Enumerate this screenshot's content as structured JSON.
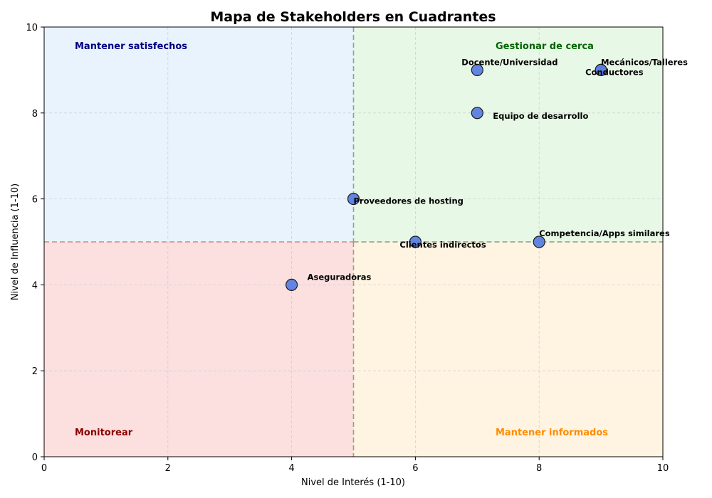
{
  "chart_data": {
    "type": "scatter",
    "title": "Mapa de Stakeholders en Cuadrantes",
    "xlabel": "Nivel de Interés (1-10)",
    "ylabel": "Nivel de Influencia (1-10)",
    "xlim": [
      0,
      10
    ],
    "ylim": [
      0,
      10
    ],
    "x_ticks": [
      "0",
      "2",
      "4",
      "6",
      "8",
      "10"
    ],
    "y_ticks": [
      "0",
      "2",
      "4",
      "6",
      "8",
      "10"
    ],
    "grid": true,
    "thresholds": {
      "x": 5,
      "y": 5
    },
    "quadrants": [
      {
        "key": "top-left",
        "label": "Mantener satisfechos",
        "fill": "#e8f3fe",
        "color": "#00007f"
      },
      {
        "key": "top-right",
        "label": "Gestionar de cerca",
        "fill": "#e8f8e6",
        "color": "#006400"
      },
      {
        "key": "bottom-left",
        "label": "Monitorear",
        "fill": "#fbe0df",
        "color": "#8b0000"
      },
      {
        "key": "bottom-right",
        "label": "Mantener informados",
        "fill": "#fff4e2",
        "color": "#ff8c00"
      }
    ],
    "point_color": "#5b7ee0",
    "points": [
      {
        "name": "Docente/Universidad",
        "x": 7,
        "y": 9
      },
      {
        "name": "Mecánicos/Talleres",
        "x": 9,
        "y": 9
      },
      {
        "name": "Conductores",
        "x": 9,
        "y": 9
      },
      {
        "name": "Equipo de desarrollo",
        "x": 7,
        "y": 8
      },
      {
        "name": "Proveedores de hosting",
        "x": 5,
        "y": 6
      },
      {
        "name": "Competencia/Apps similares",
        "x": 8,
        "y": 5
      },
      {
        "name": "Clientes indirectos",
        "x": 6,
        "y": 5
      },
      {
        "name": "Aseguradoras",
        "x": 4,
        "y": 4
      }
    ]
  }
}
